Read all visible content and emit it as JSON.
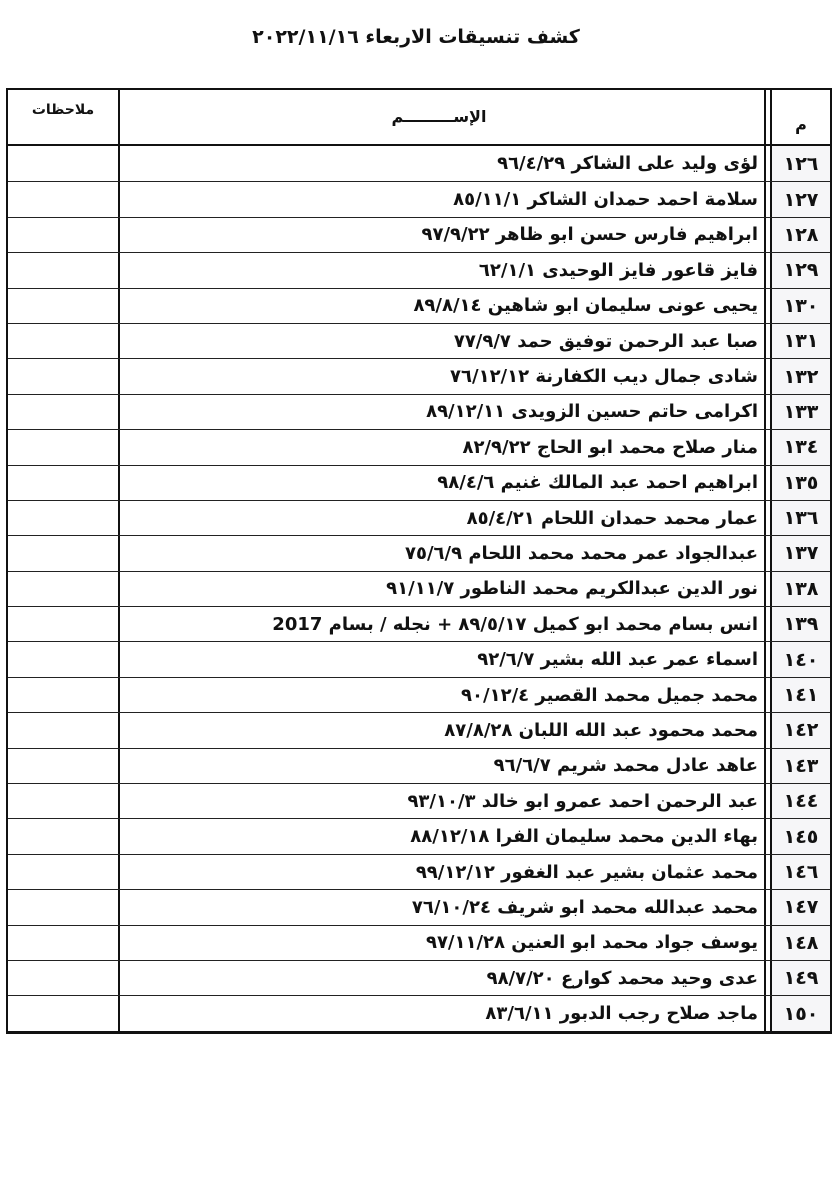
{
  "title": "كشف تنسيقات الاربعاء ٢٠٢٢/١١/١٦",
  "headers": {
    "number": "م",
    "name": "الإســـــــــم",
    "notes": "ملاحظات"
  },
  "rows": [
    {
      "number": "١٢٦",
      "name": "لؤى وليد على الشاكر ٩٦/٤/٢٩"
    },
    {
      "number": "١٢٧",
      "name": "سلامة احمد حمدان الشاكر ٨٥/١١/١"
    },
    {
      "number": "١٢٨",
      "name": "ابراهيم فارس حسن ابو ظاهر ٩٧/٩/٢٢"
    },
    {
      "number": "١٢٩",
      "name": "فايز قاعور فايز الوحيدى ٦٢/١/١"
    },
    {
      "number": "١٣٠",
      "name": "يحيى عونى سليمان ابو شاهين ٨٩/٨/١٤"
    },
    {
      "number": "١٣١",
      "name": "صبا عبد الرحمن توفيق حمد ٧٧/٩/٧"
    },
    {
      "number": "١٣٢",
      "name": "شادى جمال ديب الكفارنة ٧٦/١٢/١٢"
    },
    {
      "number": "١٣٣",
      "name": "اكرامى حاتم حسين الزويدى ٨٩/١٢/١١"
    },
    {
      "number": "١٣٤",
      "name": "منار صلاح محمد ابو الحاج ٨٢/٩/٢٢"
    },
    {
      "number": "١٣٥",
      "name": "ابراهيم احمد عبد المالك غنيم ٩٨/٤/٦"
    },
    {
      "number": "١٣٦",
      "name": "عمار محمد حمدان اللحام ٨٥/٤/٢١"
    },
    {
      "number": "١٣٧",
      "name": "عبدالجواد عمر محمد محمد اللحام ٧٥/٦/٩"
    },
    {
      "number": "١٣٨",
      "name": "نور الدين عبدالكريم محمد الناطور ٩١/١١/٧"
    },
    {
      "number": "١٣٩",
      "name": "انس بسام محمد ابو كميل ٨٩/٥/١٧ + نجله / بسام 2017"
    },
    {
      "number": "١٤٠",
      "name": "اسماء عمر عبد الله بشير ٩٢/٦/٧"
    },
    {
      "number": "١٤١",
      "name": "محمد جميل محمد القصير ٩٠/١٢/٤"
    },
    {
      "number": "١٤٢",
      "name": "محمد محمود عبد الله اللبان ٨٧/٨/٢٨"
    },
    {
      "number": "١٤٣",
      "name": "عاهد عادل محمد شريم ٩٦/٦/٧"
    },
    {
      "number": "١٤٤",
      "name": "عبد الرحمن احمد عمرو ابو خالد ٩٣/١٠/٣"
    },
    {
      "number": "١٤٥",
      "name": "بهاء الدين محمد سليمان الفرا ٨٨/١٢/١٨"
    },
    {
      "number": "١٤٦",
      "name": "محمد عثمان بشير عبد الغفور ٩٩/١٢/١٢"
    },
    {
      "number": "١٤٧",
      "name": "محمد عبدالله محمد ابو شريف ٧٦/١٠/٢٤"
    },
    {
      "number": "١٤٨",
      "name": "يوسف جواد محمد ابو العنين ٩٧/١١/٢٨"
    },
    {
      "number": "١٤٩",
      "name": "عدى وحيد محمد كوارع ٩٨/٧/٢٠"
    },
    {
      "number": "١٥٠",
      "name": "ماجد صلاح رجب الدبور ٨٣/٦/١١"
    }
  ]
}
